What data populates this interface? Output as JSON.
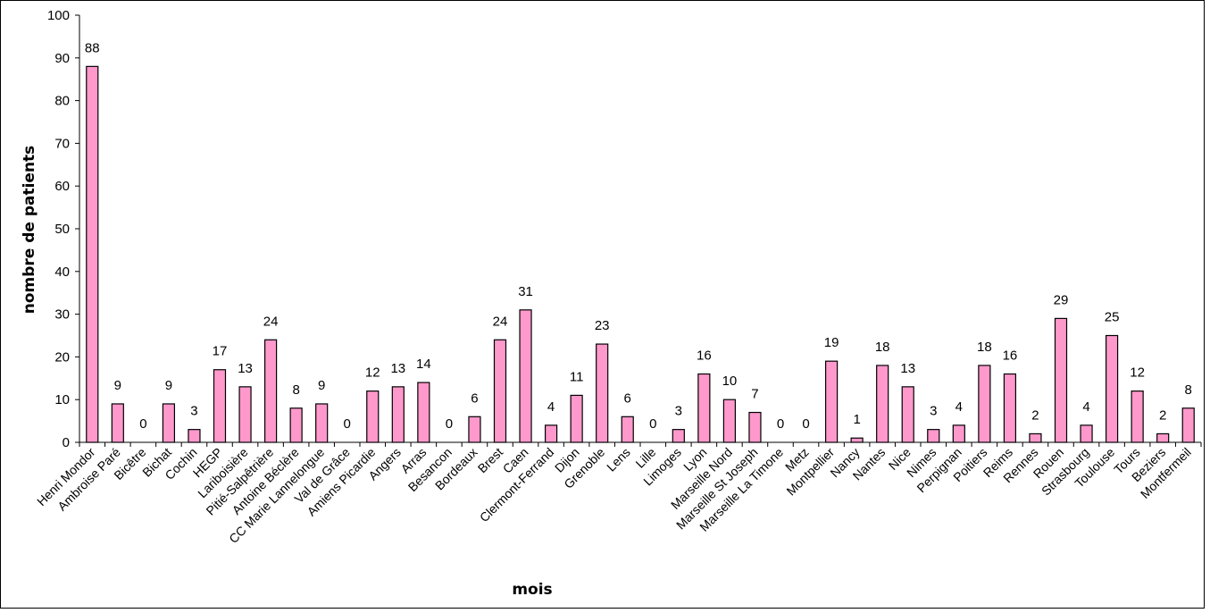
{
  "chart_data": {
    "type": "bar",
    "title": "",
    "xlabel": "mois",
    "ylabel": "nombre de patients",
    "ylim": [
      0,
      100
    ],
    "yticks": [
      0,
      10,
      20,
      30,
      40,
      50,
      60,
      70,
      80,
      90,
      100
    ],
    "grid": false,
    "legend": "none",
    "bar_color": "#ff99cc",
    "bar_edge_color": "#000000",
    "categories": [
      "Henri Mondor",
      "Ambroise Paré",
      "Bicêtre",
      "Bichat",
      "Cochin",
      "HEGP",
      "Lariboisière",
      "Pitié-Salpêtrière",
      "Antoine Béclère",
      "CC Marie Lannelongue",
      "Val de Grâce",
      "Amiens Picardie",
      "Angers",
      "Arras",
      "Besancon",
      "Bordeaux",
      "Brest",
      "Caen",
      "Clermont-Ferrand",
      "Dijon",
      "Grenoble",
      "Lens",
      "Lille",
      "Limoges",
      "Lyon",
      "Marseille Nord",
      "Marseille St Joseph",
      "Marseille La Timone",
      "Metz",
      "Montpellier",
      "Nancy",
      "Nantes",
      "Nice",
      "Nimes",
      "Perpignan",
      "Poitiers",
      "Reims",
      "Rennes",
      "Rouen",
      "Strasbourg",
      "Toulouse",
      "Tours",
      "Beziers",
      "Montfermeil"
    ],
    "values": [
      88,
      9,
      0,
      9,
      3,
      17,
      13,
      24,
      8,
      9,
      0,
      12,
      13,
      14,
      0,
      6,
      24,
      31,
      4,
      11,
      23,
      6,
      0,
      3,
      16,
      10,
      7,
      0,
      0,
      19,
      1,
      18,
      13,
      3,
      4,
      18,
      16,
      2,
      29,
      4,
      25,
      12,
      2,
      8
    ]
  }
}
